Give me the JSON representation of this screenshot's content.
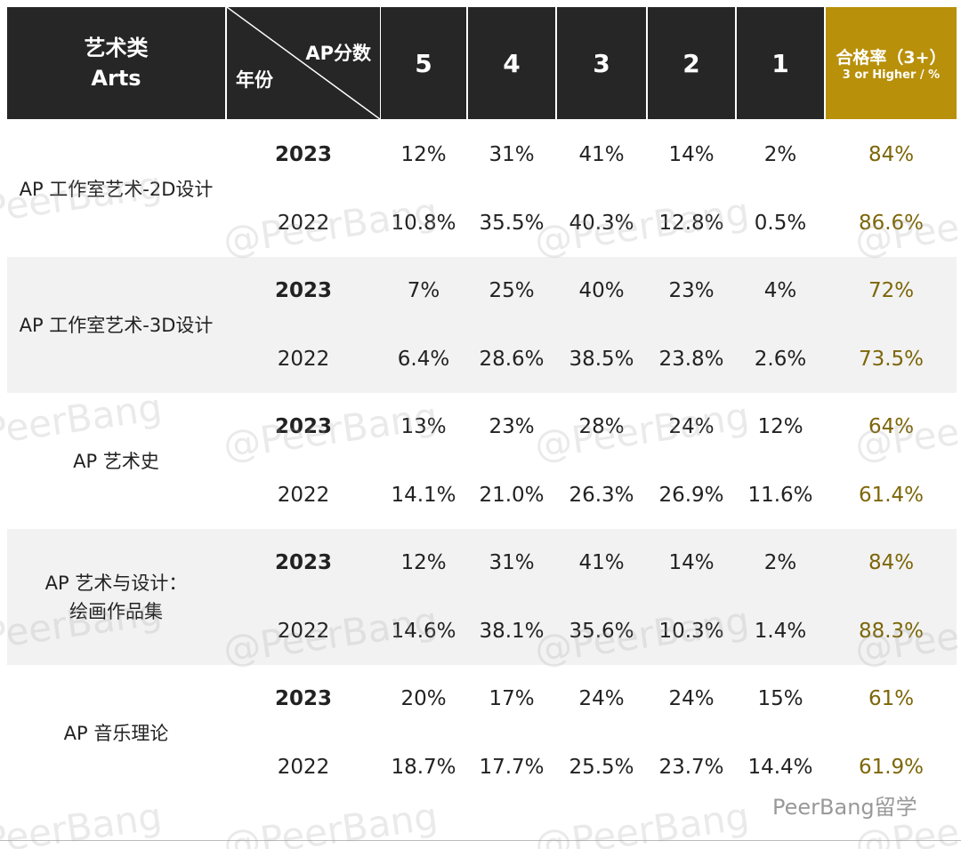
{
  "header": {
    "category_cn": "艺术类",
    "category_en": "Arts",
    "score_label": "AP分数",
    "year_label": "年份",
    "scores": [
      "5",
      "4",
      "3",
      "2",
      "1"
    ],
    "rate_cn": "合格率（3+）",
    "rate_en": "3 or Higher / %"
  },
  "rows": [
    {
      "subject": [
        "AP 工作室艺术-2D设计"
      ],
      "years": [
        {
          "year": "2023",
          "values": [
            "12%",
            "31%",
            "41%",
            "14%",
            "2%"
          ],
          "rate": "84%"
        },
        {
          "year": "2022",
          "values": [
            "10.8%",
            "35.5%",
            "40.3%",
            "12.8%",
            "0.5%"
          ],
          "rate": "86.6%"
        }
      ]
    },
    {
      "subject": [
        "AP 工作室艺术-3D设计"
      ],
      "years": [
        {
          "year": "2023",
          "values": [
            "7%",
            "25%",
            "40%",
            "23%",
            "4%"
          ],
          "rate": "72%"
        },
        {
          "year": "2022",
          "values": [
            "6.4%",
            "28.6%",
            "38.5%",
            "23.8%",
            "2.6%"
          ],
          "rate": "73.5%"
        }
      ]
    },
    {
      "subject": [
        "AP 艺术史"
      ],
      "years": [
        {
          "year": "2023",
          "values": [
            "13%",
            "23%",
            "28%",
            "24%",
            "12%"
          ],
          "rate": "64%"
        },
        {
          "year": "2022",
          "values": [
            "14.1%",
            "21.0%",
            "26.3%",
            "26.9%",
            "11.6%"
          ],
          "rate": "61.4%"
        }
      ]
    },
    {
      "subject": [
        "AP 艺术与设计：",
        "绘画作品集"
      ],
      "years": [
        {
          "year": "2023",
          "values": [
            "12%",
            "31%",
            "41%",
            "14%",
            "2%"
          ],
          "rate": "84%"
        },
        {
          "year": "2022",
          "values": [
            "14.6%",
            "38.1%",
            "35.6%",
            "10.3%",
            "1.4%"
          ],
          "rate": "88.3%"
        }
      ]
    },
    {
      "subject": [
        "AP 音乐理论"
      ],
      "years": [
        {
          "year": "2023",
          "values": [
            "20%",
            "17%",
            "24%",
            "24%",
            "15%"
          ],
          "rate": "61%"
        },
        {
          "year": "2022",
          "values": [
            "18.7%",
            "17.7%",
            "25.5%",
            "23.7%",
            "14.4%"
          ],
          "rate": "61.9%"
        }
      ]
    }
  ],
  "watermark": "@PeerBang",
  "logo": "PeerBang留学"
}
